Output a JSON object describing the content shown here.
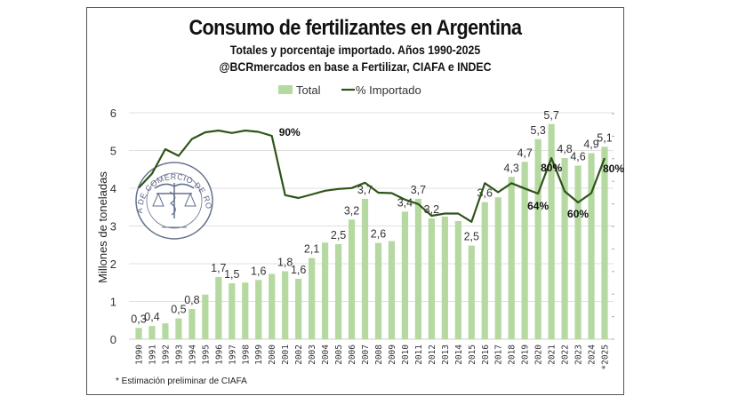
{
  "chart_data": {
    "type": "bar+line",
    "title": "Consumo de fertilizantes en Argentina",
    "subtitle": [
      "Totales y porcentaje importado. Años 1990-2025",
      "@BCRmercados en base a Fertilizar, CIAFA e INDEC"
    ],
    "ylabel": "Millones de toneladas",
    "ylim": [
      0,
      6
    ],
    "yticks": [
      "0",
      "1",
      "2",
      "3",
      "4",
      "5",
      "6"
    ],
    "y2lim": [
      0,
      100
    ],
    "grid": true,
    "legend_position": "top",
    "footnote": "* Estimación preliminar de CIAFA",
    "categories": [
      "1990",
      "1991",
      "1992",
      "1993",
      "1994",
      "1995",
      "1996",
      "1997",
      "1998",
      "1999",
      "2000",
      "2001",
      "2002",
      "2003",
      "2004",
      "2005",
      "2006",
      "2007",
      "2008",
      "2009",
      "2010",
      "2011",
      "2012",
      "2013",
      "2014",
      "2015",
      "2016",
      "2017",
      "2018",
      "2019",
      "2020",
      "2021",
      "2022",
      "2023",
      "2024",
      "*2025"
    ],
    "series": [
      {
        "name": "Total",
        "type": "bar",
        "axis": "left",
        "color": "#b5d9a0",
        "values": [
          0.3,
          0.35,
          0.42,
          0.55,
          0.8,
          1.18,
          1.65,
          1.48,
          1.5,
          1.57,
          1.73,
          1.8,
          1.6,
          2.15,
          2.56,
          2.52,
          3.17,
          3.72,
          2.55,
          2.6,
          3.38,
          3.72,
          3.2,
          3.25,
          3.13,
          2.48,
          3.63,
          3.76,
          4.3,
          4.7,
          5.3,
          5.7,
          4.8,
          4.6,
          4.93,
          5.1
        ],
        "data_labels": [
          "0,3",
          "0,4",
          null,
          "0,5",
          "0,8",
          null,
          "1,7",
          "1,5",
          null,
          "1,6",
          null,
          "1,8",
          "1,6",
          "2,1",
          null,
          "2,5",
          "3,2",
          "3,7",
          "2,6",
          null,
          "3,4",
          "3,7",
          "3,2",
          null,
          null,
          "2,5",
          "3,6",
          null,
          "4,3",
          "4,7",
          "5,3",
          "5,7",
          "4,8",
          "4,6",
          "4,9",
          "5,1"
        ]
      },
      {
        "name": "% Importado",
        "type": "line",
        "axis": "right",
        "color": "#2f5418",
        "values": [
          66.6,
          73,
          84,
          81,
          88.6,
          91.6,
          92.4,
          91.3,
          92.4,
          91.8,
          90,
          63.3,
          62,
          63.6,
          65.3,
          66.1,
          66.5,
          68.9,
          64.4,
          64.2,
          61.3,
          59.3,
          54,
          55,
          55,
          51.3,
          68.7,
          64.6,
          68.7,
          66.3,
          64,
          80,
          65,
          60,
          64.2,
          80
        ],
        "data_labels": {
          "2000": "90%",
          "2020": "64%",
          "2021": "80%",
          "2023": "60%",
          "*2025": "80%"
        }
      }
    ]
  },
  "logo": {
    "text": "BOLSA DE COMERCIO DE ROSARIO"
  }
}
